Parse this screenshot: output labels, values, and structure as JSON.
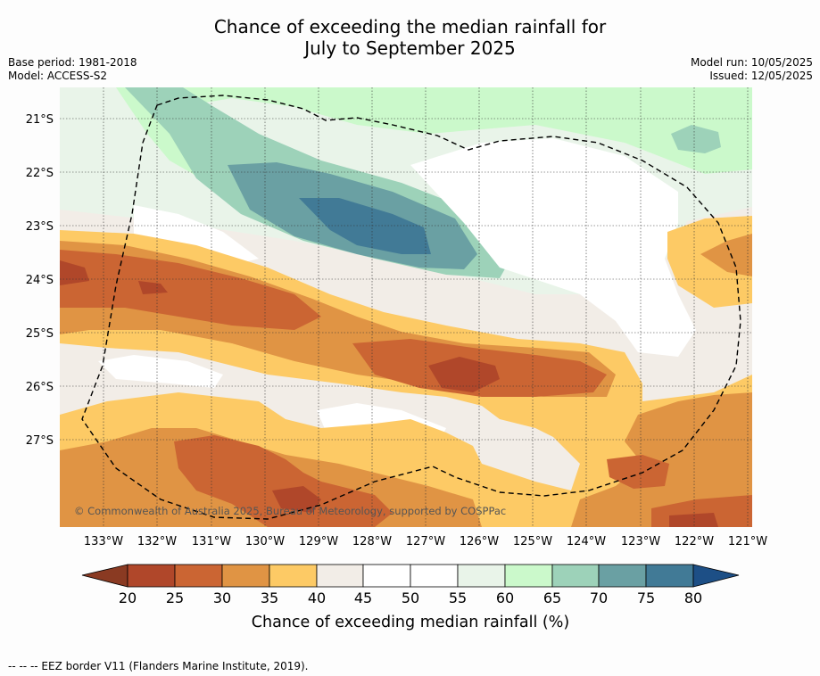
{
  "title": {
    "line1": "Chance of exceeding the median rainfall for",
    "line2": "July to September 2025"
  },
  "meta_left": {
    "base_period": "Base period: 1981-2018",
    "model": "Model: ACCESS-S2"
  },
  "meta_right": {
    "model_run": "Model run: 10/05/2025",
    "issued": "Issued: 12/05/2025"
  },
  "map": {
    "lat_labels": [
      "21°S",
      "22°S",
      "23°S",
      "24°S",
      "25°S",
      "26°S",
      "27°S"
    ],
    "lon_labels": [
      "133°W",
      "132°W",
      "131°W",
      "130°W",
      "129°W",
      "128°W",
      "127°W",
      "126°W",
      "125°W",
      "124°W",
      "123°W",
      "122°W",
      "121°W"
    ],
    "copyright": "© Commonwealth of Australia 2025, Bureau of Meteorology, supported by COSPPac",
    "colors": {
      "lt20": "#8a3a22",
      "20-25": "#b0472a",
      "25-30": "#cb6533",
      "30-35": "#e09444",
      "35-40": "#fdca65",
      "40-45": "#f2ede7",
      "45-50": "#ffffff",
      "50-55": "#ffffff",
      "55-60": "#e9f4e9",
      "60-65": "#cbf9cb",
      "65-70": "#9dd2b9",
      "70-75": "#6aa0a3",
      "75-80": "#417a96",
      "gt80": "#1d4f86"
    }
  },
  "colorbar": {
    "ticks": [
      "20",
      "25",
      "30",
      "35",
      "40",
      "45",
      "50",
      "55",
      "60",
      "65",
      "70",
      "75",
      "80"
    ],
    "label": "Chance of exceeding median rainfall (%)"
  },
  "footer": {
    "legend": "--  --  -- EEZ border V11 (Flanders Marine Institute, 2019)."
  }
}
